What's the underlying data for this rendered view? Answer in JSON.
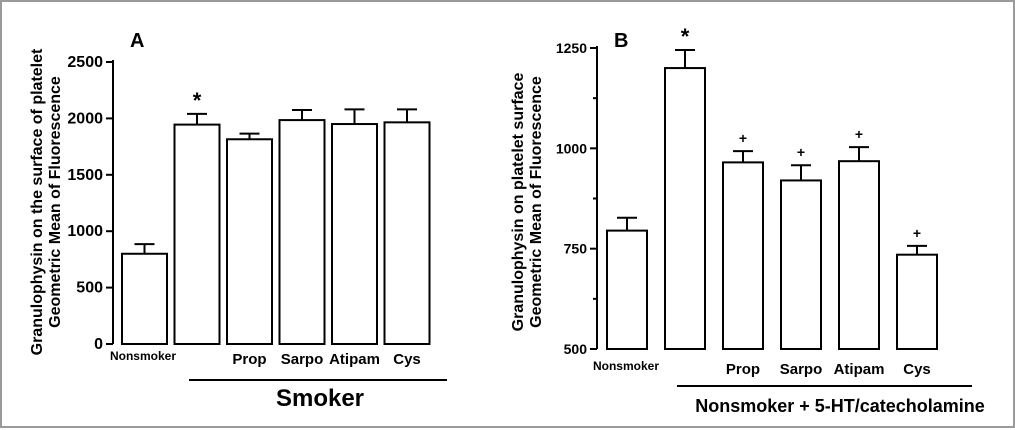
{
  "chart_data": [
    {
      "type": "bar",
      "panel_label": "A",
      "ylabel_lines": [
        "Granulophysin on the surface of platelet",
        "Geometric Mean of Fluorescence"
      ],
      "ylim": [
        0,
        2500
      ],
      "yticks": [
        0,
        500,
        1000,
        1500,
        2000,
        2500
      ],
      "categories": [
        "Nonsmoker",
        "",
        "Prop",
        "Sarpo",
        "Atipam",
        "Cys"
      ],
      "values": [
        800,
        1945,
        1815,
        1985,
        1950,
        1965
      ],
      "errors": [
        85,
        95,
        50,
        90,
        130,
        115
      ],
      "markers": [
        "",
        "*",
        "",
        "",
        "",
        ""
      ],
      "group_label": "Smoker"
    },
    {
      "type": "bar",
      "panel_label": "B",
      "ylabel_lines": [
        "Granulophysin on platelet surface",
        "Geometric Mean of Fluorescence"
      ],
      "ylim": [
        500,
        1250
      ],
      "yticks": [
        500,
        750,
        1000,
        1250
      ],
      "categories": [
        "Nonsmoker",
        "",
        "Prop",
        "Sarpo",
        "Atipam",
        "Cys"
      ],
      "values": [
        795,
        1200,
        965,
        920,
        968,
        735
      ],
      "errors": [
        32,
        45,
        28,
        38,
        35,
        22
      ],
      "markers": [
        "",
        "*",
        "+",
        "+",
        "+",
        "+"
      ],
      "group_label": "Nonsmoker + 5-HT/catecholamine"
    }
  ]
}
